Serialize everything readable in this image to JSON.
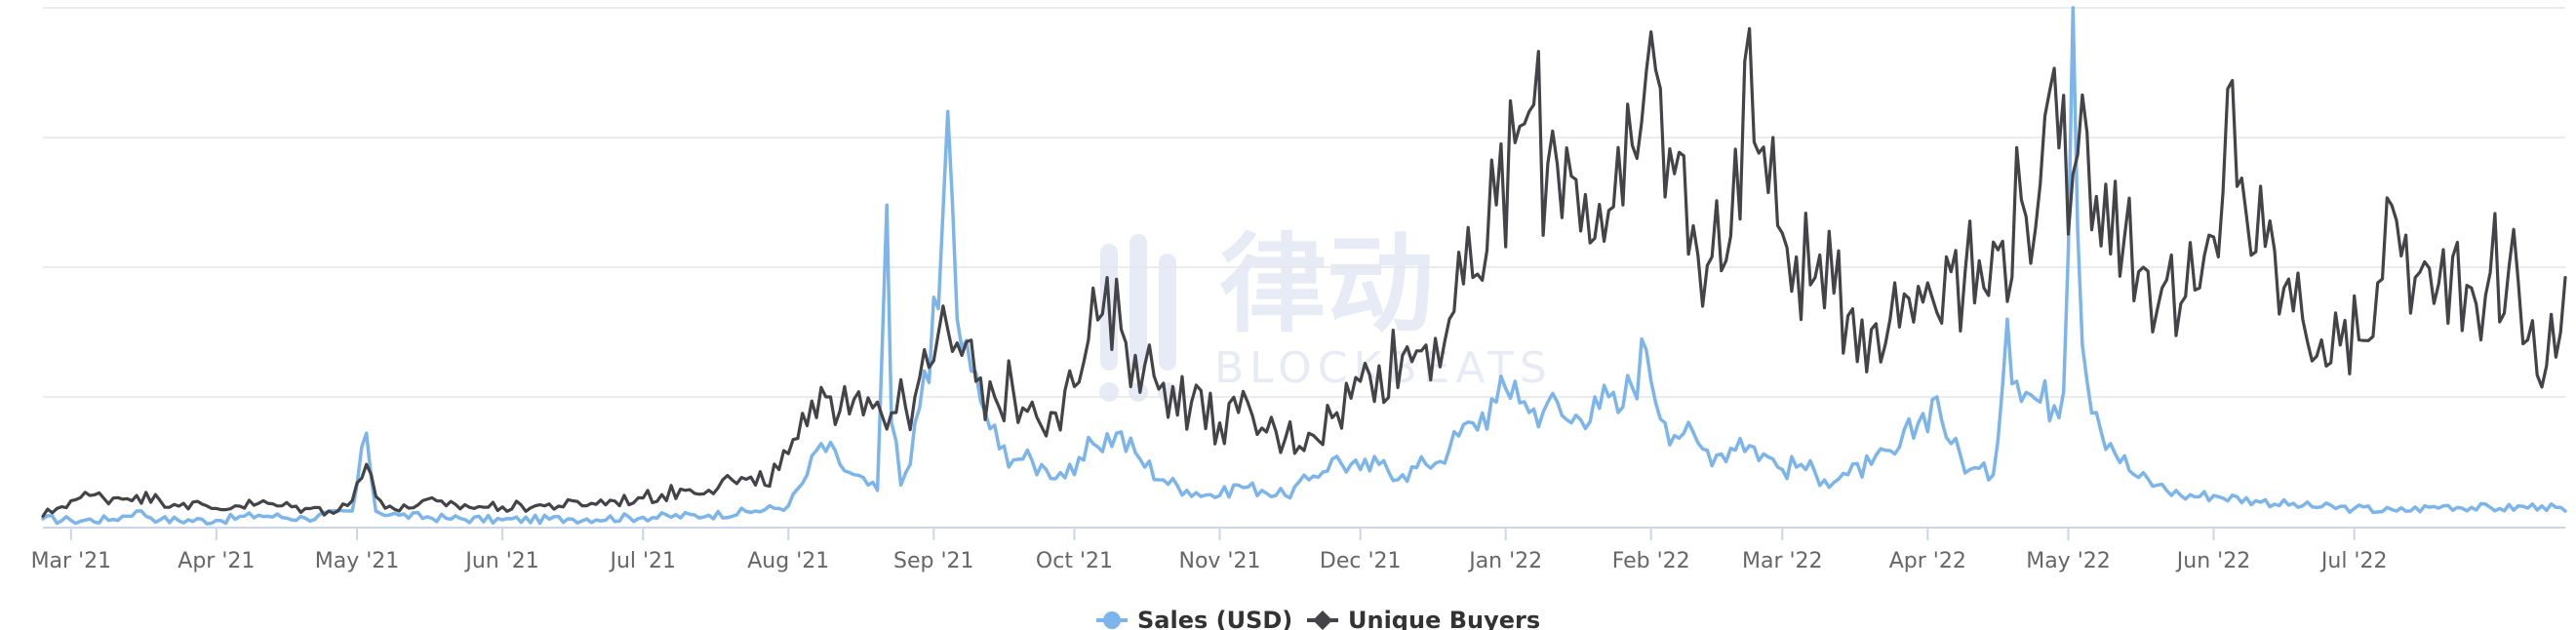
{
  "colors": {
    "sales": "#7cb5ec",
    "buyers": "#434348",
    "grid": "#e6e6e6",
    "axis": "#ccd6eb",
    "watermark": "#e6ebf5"
  },
  "watermark": {
    "brand": "律动",
    "sub": "BLOCKBEATS"
  },
  "chart_data": {
    "type": "line",
    "x_start": "2021-02-23",
    "x_end": "2022-08-15",
    "x_ticks": [
      {
        "label": "Mar '21",
        "date": "2021-03-01"
      },
      {
        "label": "Apr '21",
        "date": "2021-04-01"
      },
      {
        "label": "May '21",
        "date": "2021-05-01"
      },
      {
        "label": "Jun '21",
        "date": "2021-06-01"
      },
      {
        "label": "Jul '21",
        "date": "2021-07-01"
      },
      {
        "label": "Aug '21",
        "date": "2021-08-01"
      },
      {
        "label": "Sep '21",
        "date": "2021-09-01"
      },
      {
        "label": "Oct '21",
        "date": "2021-10-01"
      },
      {
        "label": "Nov '21",
        "date": "2021-11-01"
      },
      {
        "label": "Dec '21",
        "date": "2021-12-01"
      },
      {
        "label": "Jan '22",
        "date": "2022-01-01"
      },
      {
        "label": "Feb '22",
        "date": "2022-02-01"
      },
      {
        "label": "Mar '22",
        "date": "2022-03-01"
      },
      {
        "label": "Apr '22",
        "date": "2022-04-01"
      },
      {
        "label": "May '22",
        "date": "2022-05-01"
      },
      {
        "label": "Jun '22",
        "date": "2022-06-01"
      },
      {
        "label": "Jul '22",
        "date": "2022-07-01"
      }
    ],
    "y_range": [
      0,
      100
    ],
    "grid_lines": 4,
    "y_labels_shown": false,
    "legend": {
      "position": "bottom-center"
    },
    "series": [
      {
        "name": "Sales (USD)",
        "marker": "circle",
        "points": [
          [
            "2021-02-23",
            1.5
          ],
          [
            "2021-03-01",
            1.2
          ],
          [
            "2021-03-10",
            1.4
          ],
          [
            "2021-03-15",
            3
          ],
          [
            "2021-03-20",
            1.3
          ],
          [
            "2021-04-01",
            1.2
          ],
          [
            "2021-04-10",
            2.2
          ],
          [
            "2021-04-20",
            1.6
          ],
          [
            "2021-04-30",
            3
          ],
          [
            "2021-05-03",
            18
          ],
          [
            "2021-05-05",
            3
          ],
          [
            "2021-05-10",
            2.2
          ],
          [
            "2021-05-20",
            1.6
          ],
          [
            "2021-06-01",
            1.3
          ],
          [
            "2021-06-15",
            1.5
          ],
          [
            "2021-07-01",
            1.8
          ],
          [
            "2021-07-15",
            2.2
          ],
          [
            "2021-07-25",
            3
          ],
          [
            "2021-08-01",
            4
          ],
          [
            "2021-08-05",
            10
          ],
          [
            "2021-08-08",
            16
          ],
          [
            "2021-08-12",
            12
          ],
          [
            "2021-08-15",
            10
          ],
          [
            "2021-08-18",
            8
          ],
          [
            "2021-08-20",
            7
          ],
          [
            "2021-08-22",
            62
          ],
          [
            "2021-08-23",
            20
          ],
          [
            "2021-08-25",
            8
          ],
          [
            "2021-08-27",
            12
          ],
          [
            "2021-08-30",
            30
          ],
          [
            "2021-09-02",
            42
          ],
          [
            "2021-09-04",
            80
          ],
          [
            "2021-09-06",
            40
          ],
          [
            "2021-09-09",
            30
          ],
          [
            "2021-09-12",
            22
          ],
          [
            "2021-09-15",
            15
          ],
          [
            "2021-09-20",
            13
          ],
          [
            "2021-09-25",
            11
          ],
          [
            "2021-10-01",
            10
          ],
          [
            "2021-10-05",
            16
          ],
          [
            "2021-10-10",
            18
          ],
          [
            "2021-10-15",
            13
          ],
          [
            "2021-10-20",
            9
          ],
          [
            "2021-10-25",
            7
          ],
          [
            "2021-11-01",
            6
          ],
          [
            "2021-11-05",
            8
          ],
          [
            "2021-11-10",
            7
          ],
          [
            "2021-11-15",
            6
          ],
          [
            "2021-11-20",
            9
          ],
          [
            "2021-11-25",
            13
          ],
          [
            "2021-12-01",
            11
          ],
          [
            "2021-12-05",
            12
          ],
          [
            "2021-12-10",
            10
          ],
          [
            "2021-12-15",
            12
          ],
          [
            "2021-12-20",
            15
          ],
          [
            "2021-12-25",
            20
          ],
          [
            "2021-12-30",
            24
          ],
          [
            "2022-01-03",
            28
          ],
          [
            "2022-01-06",
            22
          ],
          [
            "2022-01-10",
            24
          ],
          [
            "2022-01-15",
            20
          ],
          [
            "2022-01-20",
            25
          ],
          [
            "2022-01-25",
            22
          ],
          [
            "2022-01-31",
            34
          ],
          [
            "2022-02-04",
            20
          ],
          [
            "2022-02-08",
            18
          ],
          [
            "2022-02-12",
            15
          ],
          [
            "2022-02-16",
            14
          ],
          [
            "2022-02-20",
            17
          ],
          [
            "2022-02-25",
            14
          ],
          [
            "2022-03-01",
            11
          ],
          [
            "2022-03-05",
            12
          ],
          [
            "2022-03-10",
            9
          ],
          [
            "2022-03-15",
            10
          ],
          [
            "2022-03-20",
            12
          ],
          [
            "2022-03-25",
            14
          ],
          [
            "2022-03-30",
            20
          ],
          [
            "2022-04-03",
            25
          ],
          [
            "2022-04-06",
            16
          ],
          [
            "2022-04-10",
            11
          ],
          [
            "2022-04-15",
            10
          ],
          [
            "2022-04-18",
            40
          ],
          [
            "2022-04-20",
            28
          ],
          [
            "2022-04-25",
            24
          ],
          [
            "2022-04-30",
            26
          ],
          [
            "2022-05-02",
            100
          ],
          [
            "2022-05-04",
            35
          ],
          [
            "2022-05-07",
            22
          ],
          [
            "2022-05-10",
            16
          ],
          [
            "2022-05-15",
            10
          ],
          [
            "2022-05-20",
            8
          ],
          [
            "2022-05-25",
            6
          ],
          [
            "2022-06-01",
            6
          ],
          [
            "2022-06-10",
            5
          ],
          [
            "2022-06-20",
            4
          ],
          [
            "2022-07-01",
            3.5
          ],
          [
            "2022-07-10",
            3
          ],
          [
            "2022-07-20",
            4
          ],
          [
            "2022-08-01",
            3.5
          ],
          [
            "2022-08-10",
            4
          ],
          [
            "2022-08-15",
            3
          ]
        ]
      },
      {
        "name": "Unique Buyers",
        "marker": "diamond",
        "points": [
          [
            "2021-02-23",
            2
          ],
          [
            "2021-02-26",
            3.5
          ],
          [
            "2021-03-01",
            5
          ],
          [
            "2021-03-05",
            6
          ],
          [
            "2021-03-10",
            5.5
          ],
          [
            "2021-03-15",
            6
          ],
          [
            "2021-03-20",
            5
          ],
          [
            "2021-03-25",
            4.5
          ],
          [
            "2021-04-01",
            3.5
          ],
          [
            "2021-04-05",
            4
          ],
          [
            "2021-04-10",
            4.5
          ],
          [
            "2021-04-15",
            4
          ],
          [
            "2021-04-20",
            3.5
          ],
          [
            "2021-04-25",
            3
          ],
          [
            "2021-04-30",
            5
          ],
          [
            "2021-05-03",
            12
          ],
          [
            "2021-05-06",
            5
          ],
          [
            "2021-05-10",
            3
          ],
          [
            "2021-05-15",
            5
          ],
          [
            "2021-05-20",
            4
          ],
          [
            "2021-06-01",
            3.8
          ],
          [
            "2021-06-10",
            4
          ],
          [
            "2021-06-20",
            4.5
          ],
          [
            "2021-07-01",
            5.5
          ],
          [
            "2021-07-10",
            7
          ],
          [
            "2021-07-20",
            9
          ],
          [
            "2021-07-25",
            8
          ],
          [
            "2021-07-30",
            11
          ],
          [
            "2021-08-03",
            17
          ],
          [
            "2021-08-07",
            21
          ],
          [
            "2021-08-10",
            25
          ],
          [
            "2021-08-13",
            27
          ],
          [
            "2021-08-16",
            26
          ],
          [
            "2021-08-20",
            24
          ],
          [
            "2021-08-24",
            22
          ],
          [
            "2021-08-28",
            25
          ],
          [
            "2021-09-01",
            32
          ],
          [
            "2021-09-04",
            38
          ],
          [
            "2021-09-07",
            33
          ],
          [
            "2021-09-10",
            28
          ],
          [
            "2021-09-14",
            25
          ],
          [
            "2021-09-18",
            26
          ],
          [
            "2021-09-22",
            24
          ],
          [
            "2021-09-26",
            22
          ],
          [
            "2021-10-01",
            27
          ],
          [
            "2021-10-04",
            36
          ],
          [
            "2021-10-07",
            41
          ],
          [
            "2021-10-11",
            38
          ],
          [
            "2021-10-14",
            33
          ],
          [
            "2021-10-18",
            29
          ],
          [
            "2021-10-22",
            27
          ],
          [
            "2021-10-26",
            24
          ],
          [
            "2021-11-01",
            20
          ],
          [
            "2021-11-05",
            22
          ],
          [
            "2021-11-10",
            19
          ],
          [
            "2021-11-15",
            17
          ],
          [
            "2021-11-20",
            18
          ],
          [
            "2021-11-25",
            21
          ],
          [
            "2021-12-01",
            28
          ],
          [
            "2021-12-05",
            31
          ],
          [
            "2021-12-10",
            33
          ],
          [
            "2021-12-15",
            35
          ],
          [
            "2021-12-20",
            40
          ],
          [
            "2021-12-25",
            48
          ],
          [
            "2021-12-30",
            62
          ],
          [
            "2022-01-03",
            74
          ],
          [
            "2022-01-06",
            80
          ],
          [
            "2022-01-10",
            70
          ],
          [
            "2022-01-14",
            73
          ],
          [
            "2022-01-18",
            64
          ],
          [
            "2022-01-22",
            55
          ],
          [
            "2022-01-26",
            62
          ],
          [
            "2022-01-30",
            78
          ],
          [
            "2022-02-02",
            88
          ],
          [
            "2022-02-06",
            68
          ],
          [
            "2022-02-10",
            58
          ],
          [
            "2022-02-14",
            52
          ],
          [
            "2022-02-18",
            56
          ],
          [
            "2022-02-22",
            96
          ],
          [
            "2022-02-24",
            72
          ],
          [
            "2022-02-28",
            58
          ],
          [
            "2022-03-04",
            52
          ],
          [
            "2022-03-08",
            48
          ],
          [
            "2022-03-12",
            45
          ],
          [
            "2022-03-16",
            42
          ],
          [
            "2022-03-20",
            38
          ],
          [
            "2022-03-24",
            40
          ],
          [
            "2022-03-28",
            44
          ],
          [
            "2022-04-01",
            47
          ],
          [
            "2022-04-05",
            52
          ],
          [
            "2022-04-09",
            49
          ],
          [
            "2022-04-13",
            46
          ],
          [
            "2022-04-17",
            55
          ],
          [
            "2022-04-21",
            63
          ],
          [
            "2022-04-25",
            66
          ],
          [
            "2022-04-29",
            73
          ],
          [
            "2022-05-02",
            68
          ],
          [
            "2022-05-05",
            76
          ],
          [
            "2022-05-09",
            66
          ],
          [
            "2022-05-13",
            56
          ],
          [
            "2022-05-17",
            50
          ],
          [
            "2022-05-21",
            46
          ],
          [
            "2022-05-25",
            43
          ],
          [
            "2022-05-29",
            46
          ],
          [
            "2022-06-02",
            52
          ],
          [
            "2022-06-05",
            86
          ],
          [
            "2022-06-08",
            60
          ],
          [
            "2022-06-12",
            54
          ],
          [
            "2022-06-16",
            46
          ],
          [
            "2022-06-20",
            40
          ],
          [
            "2022-06-24",
            36
          ],
          [
            "2022-06-28",
            35
          ],
          [
            "2022-07-02",
            36
          ],
          [
            "2022-07-06",
            47
          ],
          [
            "2022-07-10",
            59
          ],
          [
            "2022-07-14",
            48
          ],
          [
            "2022-07-18",
            43
          ],
          [
            "2022-07-22",
            52
          ],
          [
            "2022-07-26",
            46
          ],
          [
            "2022-07-30",
            49
          ],
          [
            "2022-08-03",
            50
          ],
          [
            "2022-08-07",
            36
          ],
          [
            "2022-08-11",
            31
          ],
          [
            "2022-08-15",
            48
          ]
        ]
      }
    ]
  }
}
